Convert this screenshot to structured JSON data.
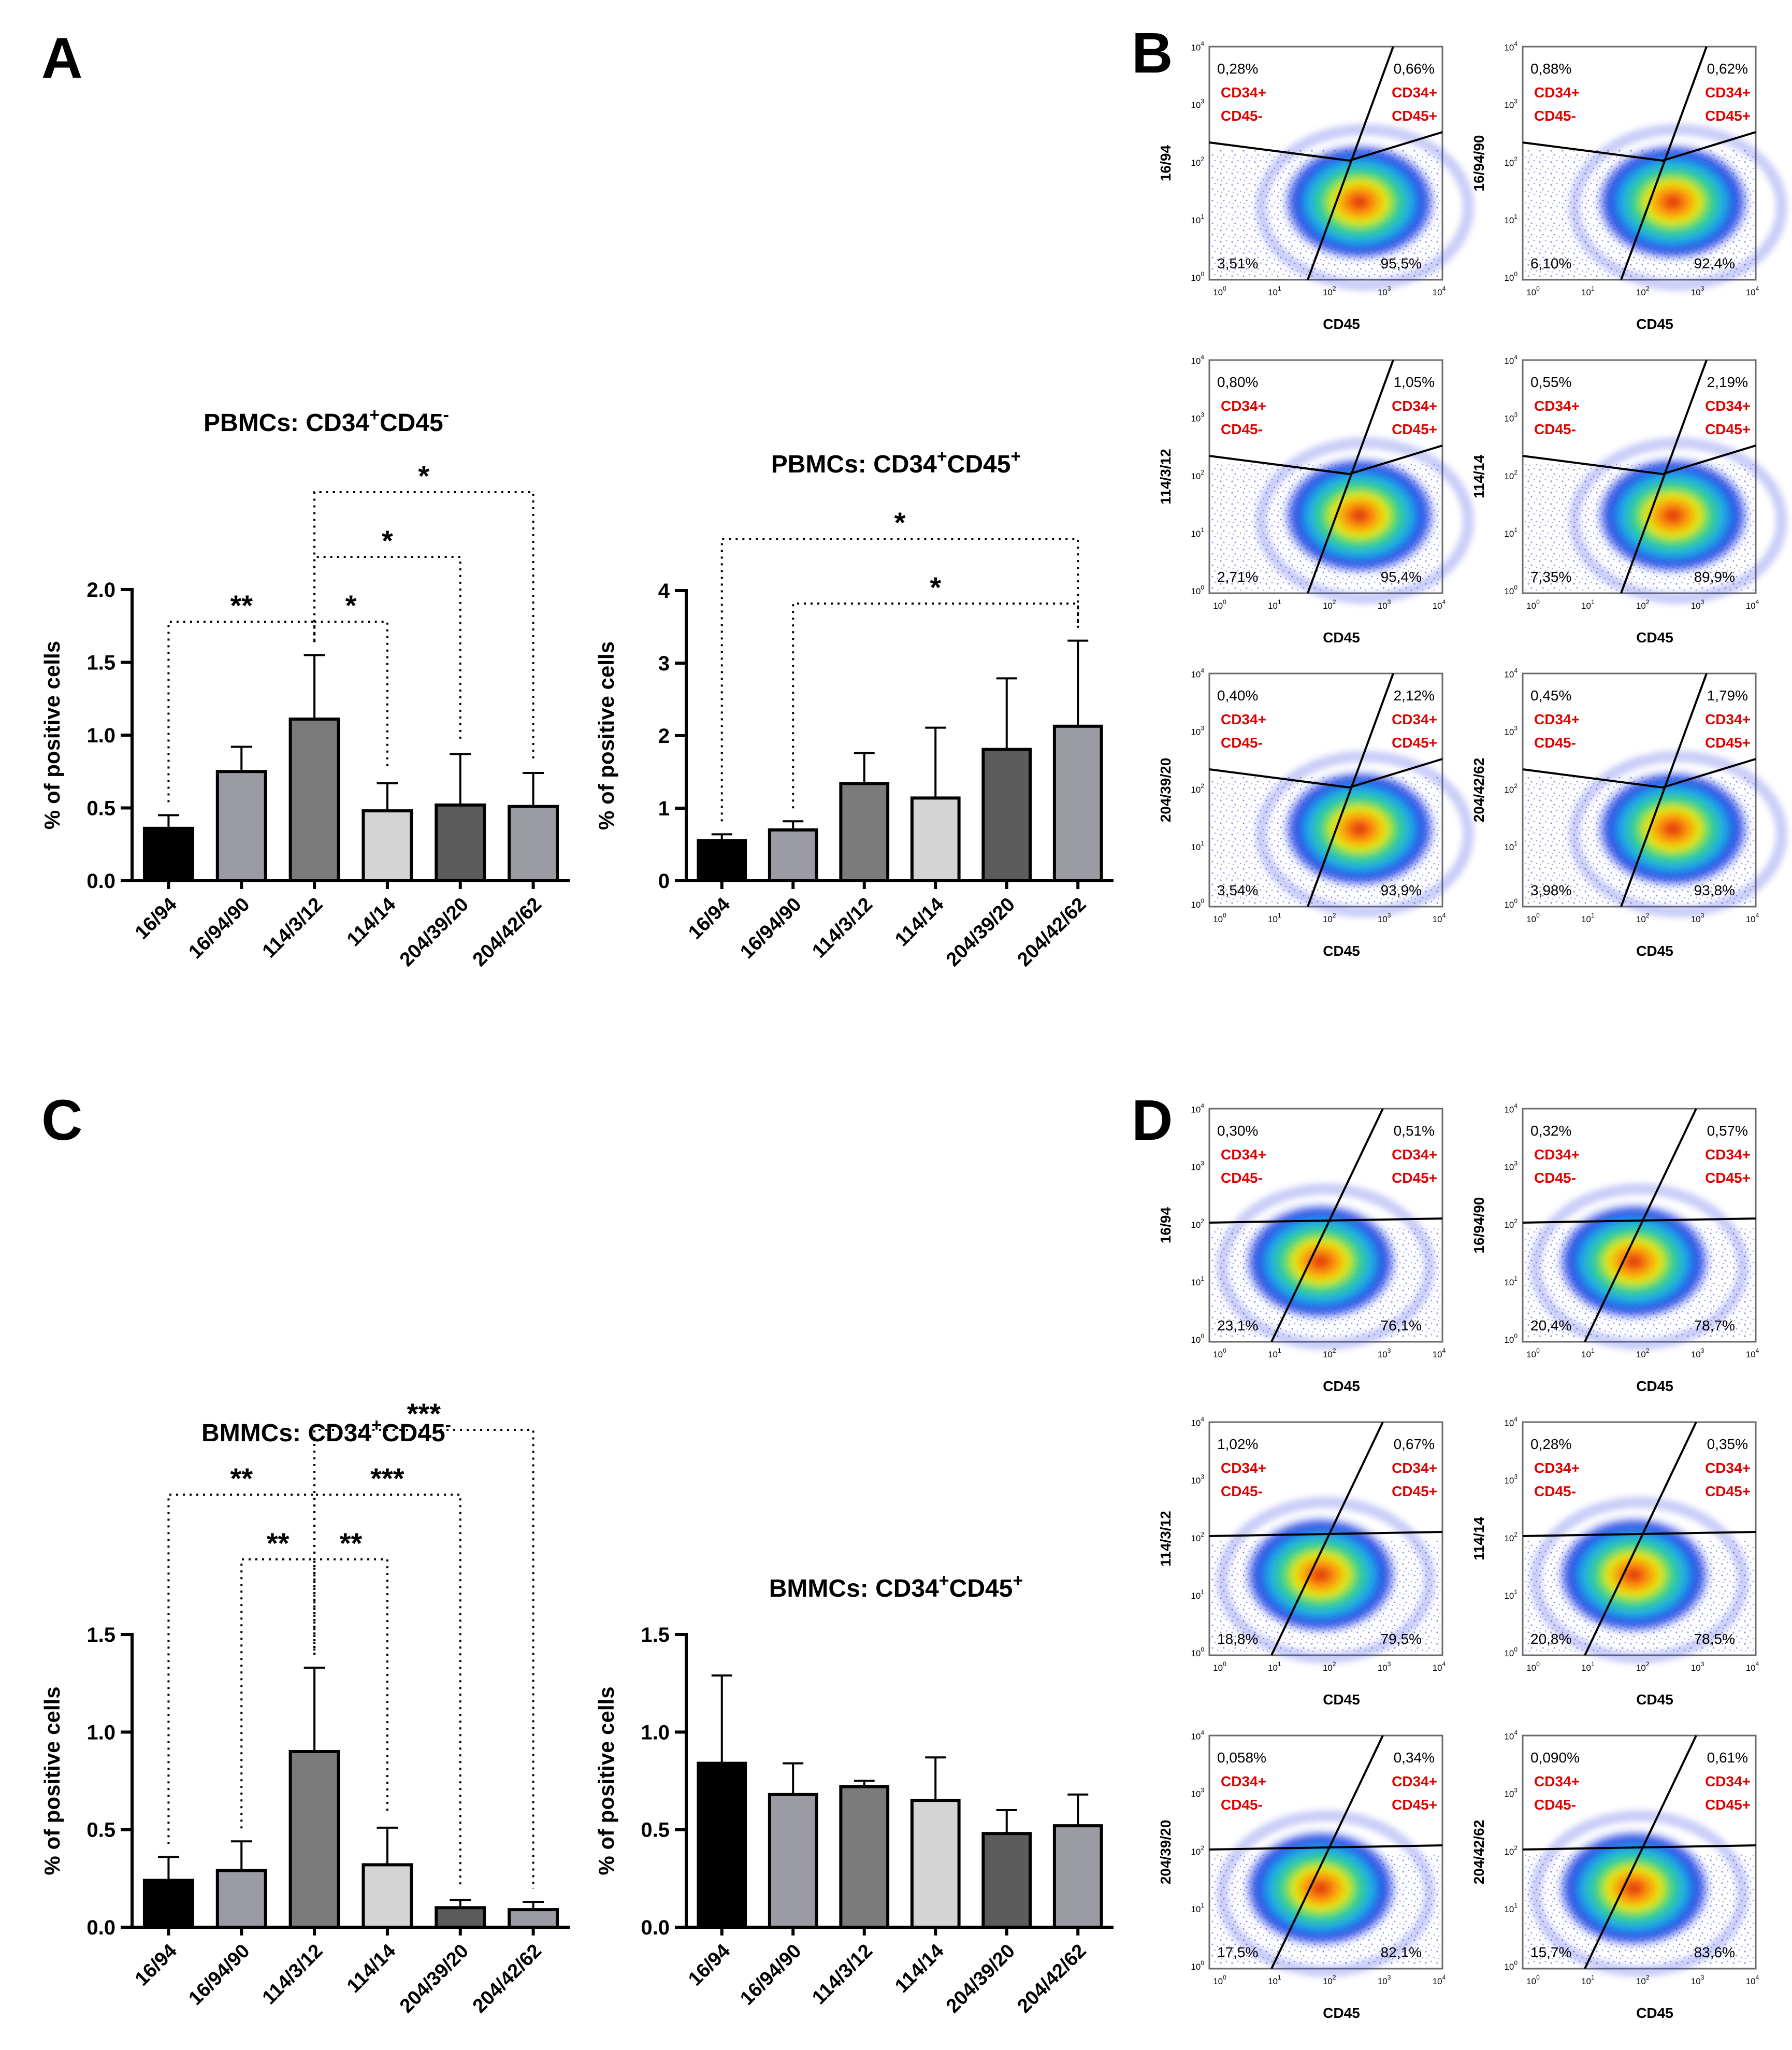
{
  "panel_letters": {
    "A": "A",
    "B": "B",
    "C": "C",
    "D": "D"
  },
  "chart_data": [
    {
      "id": "pbmc_neg",
      "type": "bar",
      "title_parts": [
        "PBMCs: CD34",
        "+",
        "CD45",
        "-"
      ],
      "ylabel": "% of positive cells",
      "categories": [
        "16/94",
        "16/94/90",
        "114/3/12",
        "114/14",
        "204/39/20",
        "204/42/62"
      ],
      "values": [
        0.36,
        0.75,
        1.11,
        0.48,
        0.52,
        0.51
      ],
      "errors": [
        0.09,
        0.17,
        0.44,
        0.19,
        0.35,
        0.23
      ],
      "colors": [
        "#000000",
        "#9b9ca3",
        "#7b7b7b",
        "#d4d4d4",
        "#5c5c5c",
        "#9b9ca3"
      ],
      "ylim": [
        0,
        2.0
      ],
      "yticks": [
        "0.0",
        "0.5",
        "1.0",
        "1.5",
        "2.0"
      ],
      "significance": [
        {
          "from": 0,
          "to": 2,
          "label": "**",
          "level": 0
        },
        {
          "from": 2,
          "to": 3,
          "label": "*",
          "level": 0
        },
        {
          "from": 2,
          "to": 4,
          "label": "*",
          "level": 1
        },
        {
          "from": 2,
          "to": 5,
          "label": "*",
          "level": 2
        }
      ]
    },
    {
      "id": "pbmc_pos",
      "type": "bar",
      "title_parts": [
        "PBMCs: CD34",
        "+",
        "CD45",
        "+"
      ],
      "ylabel": "% of positive cells",
      "categories": [
        "16/94",
        "16/94/90",
        "114/3/12",
        "114/14",
        "204/39/20",
        "204/42/62"
      ],
      "values": [
        0.55,
        0.7,
        1.34,
        1.14,
        1.81,
        2.13
      ],
      "errors": [
        0.09,
        0.12,
        0.42,
        0.97,
        0.98,
        1.18
      ],
      "colors": [
        "#000000",
        "#9b9ca3",
        "#7b7b7b",
        "#d4d4d4",
        "#5c5c5c",
        "#9b9ca3"
      ],
      "ylim": [
        0,
        4
      ],
      "yticks": [
        "0",
        "1",
        "2",
        "3",
        "4"
      ],
      "significance": [
        {
          "from": 1,
          "to": 5,
          "label": "*",
          "level": 0
        },
        {
          "from": 0,
          "to": 5,
          "label": "*",
          "level": 1
        }
      ]
    },
    {
      "id": "bmmc_neg",
      "type": "bar",
      "title_parts": [
        "BMMCs: CD34",
        "+",
        "CD45",
        "-"
      ],
      "ylabel": "% of positive cells",
      "categories": [
        "16/94",
        "16/94/90",
        "114/3/12",
        "114/14",
        "204/39/20",
        "204/42/62"
      ],
      "values": [
        0.24,
        0.29,
        0.9,
        0.32,
        0.1,
        0.09
      ],
      "errors": [
        0.12,
        0.15,
        0.43,
        0.19,
        0.04,
        0.04
      ],
      "colors": [
        "#000000",
        "#9b9ca3",
        "#7b7b7b",
        "#d4d4d4",
        "#5c5c5c",
        "#9b9ca3"
      ],
      "ylim": [
        0,
        1.5
      ],
      "yticks": [
        "0.0",
        "0.5",
        "1.0",
        "1.5"
      ],
      "significance": [
        {
          "from": 1,
          "to": 2,
          "label": "**",
          "level": 0
        },
        {
          "from": 2,
          "to": 3,
          "label": "**",
          "level": 0
        },
        {
          "from": 0,
          "to": 2,
          "label": "**",
          "level": 1
        },
        {
          "from": 2,
          "to": 4,
          "label": "***",
          "level": 1
        },
        {
          "from": 2,
          "to": 5,
          "label": "***",
          "level": 2
        }
      ]
    },
    {
      "id": "bmmc_pos",
      "type": "bar",
      "title_parts": [
        "BMMCs: CD34",
        "+",
        "CD45",
        "+"
      ],
      "ylabel": "% of positive cells",
      "categories": [
        "16/94",
        "16/94/90",
        "114/3/12",
        "114/14",
        "204/39/20",
        "204/42/62"
      ],
      "values": [
        0.84,
        0.68,
        0.72,
        0.65,
        0.48,
        0.52
      ],
      "errors": [
        0.45,
        0.16,
        0.03,
        0.22,
        0.12,
        0.16
      ],
      "colors": [
        "#000000",
        "#9b9ca3",
        "#7b7b7b",
        "#d4d4d4",
        "#5c5c5c",
        "#9b9ca3"
      ],
      "ylim": [
        0,
        1.5
      ],
      "yticks": [
        "0.0",
        "0.5",
        "1.0",
        "1.5"
      ],
      "significance": []
    }
  ],
  "flow_panels": {
    "x_axis_label": "CD45",
    "quadrant_label_left": [
      "CD34+",
      "CD45-"
    ],
    "quadrant_label_right": [
      "CD34+",
      "CD45+"
    ],
    "tick_labels": [
      "10",
      "0",
      "10",
      "1",
      "10",
      "2",
      "10",
      "3",
      "10",
      "4"
    ],
    "B": [
      {
        "sample": "16/94",
        "ul": "0,28%",
        "ur": "0,66%",
        "ll": "3,51%",
        "lr": "95,5%"
      },
      {
        "sample": "16/94/90",
        "ul": "0,88%",
        "ur": "0,62%",
        "ll": "6,10%",
        "lr": "92,4%"
      },
      {
        "sample": "114/3/12",
        "ul": "0,80%",
        "ur": "1,05%",
        "ll": "2,71%",
        "lr": "95,4%"
      },
      {
        "sample": "114/14",
        "ul": "0,55%",
        "ur": "2,19%",
        "ll": "7,35%",
        "lr": "89,9%"
      },
      {
        "sample": "204/39/20",
        "ul": "0,40%",
        "ur": "2,12%",
        "ll": "3,54%",
        "lr": "93,9%"
      },
      {
        "sample": "204/42/62",
        "ul": "0,45%",
        "ur": "1,79%",
        "ll": "3,98%",
        "lr": "93,8%"
      }
    ],
    "D": [
      {
        "sample": "16/94",
        "ul": "0,30%",
        "ur": "0,51%",
        "ll": "23,1%",
        "lr": "76,1%"
      },
      {
        "sample": "16/94/90",
        "ul": "0,32%",
        "ur": "0,57%",
        "ll": "20,4%",
        "lr": "78,7%"
      },
      {
        "sample": "114/3/12",
        "ul": "1,02%",
        "ur": "0,67%",
        "ll": "18,8%",
        "lr": "79,5%"
      },
      {
        "sample": "114/14",
        "ul": "0,28%",
        "ur": "0,35%",
        "ll": "20,8%",
        "lr": "78,5%"
      },
      {
        "sample": "204/39/20",
        "ul": "0,058%",
        "ur": "0,34%",
        "ll": "17,5%",
        "lr": "82,1%"
      },
      {
        "sample": "204/42/62",
        "ul": "0,090%",
        "ur": "0,61%",
        "ll": "15,7%",
        "lr": "83,6%"
      }
    ]
  }
}
